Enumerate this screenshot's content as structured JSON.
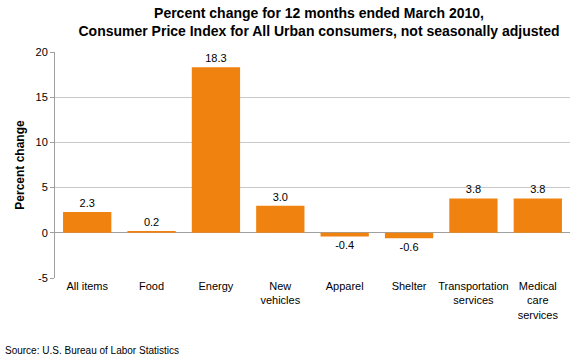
{
  "chart_data": {
    "type": "bar",
    "title": "Percent change for 12 months ended March 2010,\nConsumer Price Index for All Urban consumers, not seasonally adjusted",
    "y_label": "Percent change",
    "source": "Source: U.S. Bureau of Labor Statistics",
    "categories": [
      "All items",
      "Food",
      "Energy",
      "New vehicles",
      "Apparel",
      "Shelter",
      "Transportation services",
      "Medical care services"
    ],
    "values": [
      2.3,
      0.2,
      18.3,
      3.0,
      -0.4,
      -0.6,
      3.8,
      3.8
    ],
    "value_labels": [
      "2.3",
      "0.2",
      "18.3",
      "3.0",
      "-0.4",
      "-0.6",
      "3.8",
      "3.8"
    ],
    "color": "#f0820f",
    "ylim": [
      -5,
      20
    ],
    "yticks": [
      -5,
      0,
      5,
      10,
      15,
      20
    ],
    "grid": true,
    "data_labels": true
  }
}
